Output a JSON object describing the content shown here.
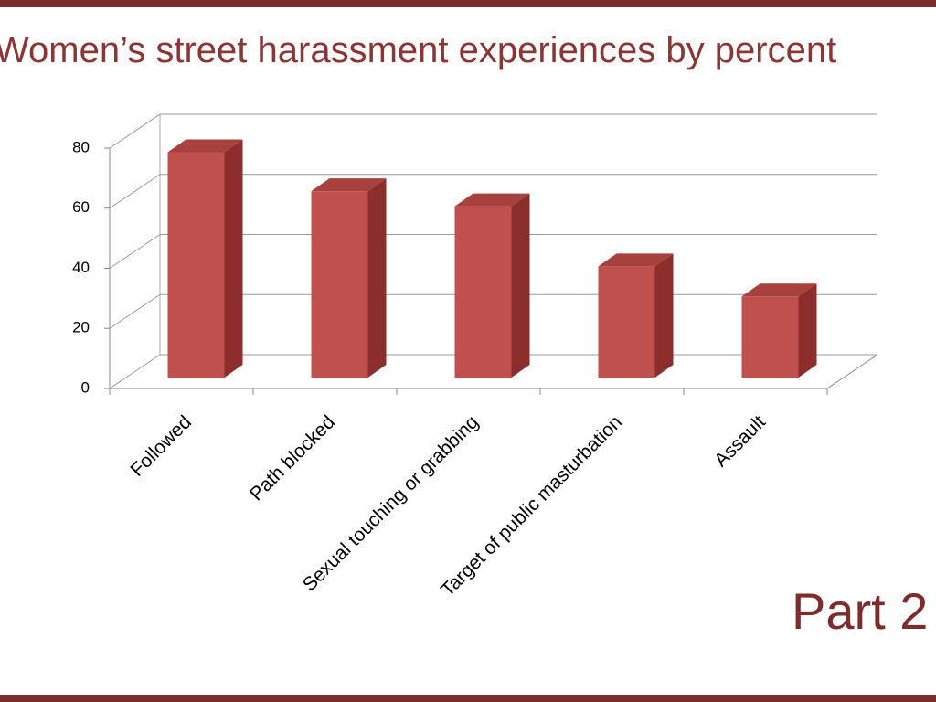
{
  "chart_data": {
    "type": "bar3d",
    "title": "Women’s street harassment experiences by percent",
    "categories": [
      "Followed",
      "Path blocked",
      "Sexual touching or grabbing",
      "Target of public masturbation",
      "Assault"
    ],
    "values": [
      75,
      62,
      57,
      37,
      27
    ],
    "color": "#c0504d",
    "ylim": [
      0,
      80
    ],
    "yticks": [
      0,
      20,
      40,
      60,
      80
    ],
    "grid": true,
    "annotations": [
      "Part 2"
    ]
  }
}
